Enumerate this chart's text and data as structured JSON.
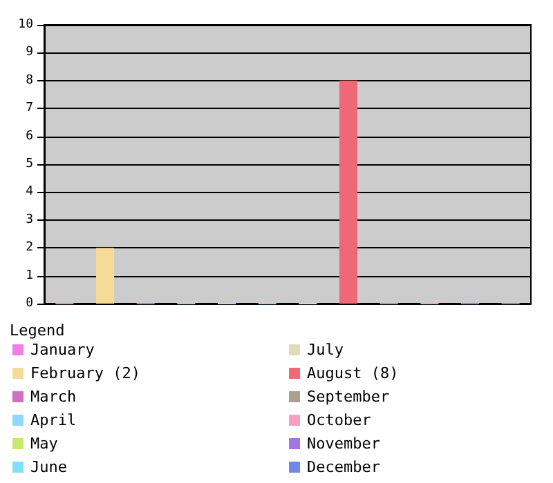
{
  "chart_data": {
    "type": "bar",
    "legend_title": "Legend",
    "categories": [
      null,
      null,
      null,
      null,
      null,
      null,
      null,
      null,
      null,
      null,
      null,
      null
    ],
    "series": [
      {
        "name": "January",
        "color": "#f080e8",
        "values": [
          0,
          null,
          null,
          null,
          null,
          null,
          null,
          null,
          null,
          null,
          null,
          null
        ]
      },
      {
        "name": "February (2)",
        "color": "#f4dc98",
        "values": [
          null,
          2,
          null,
          null,
          null,
          null,
          null,
          null,
          null,
          null,
          null,
          null
        ]
      },
      {
        "name": "March",
        "color": "#d070c0",
        "values": [
          null,
          null,
          0,
          null,
          null,
          null,
          null,
          null,
          null,
          null,
          null,
          null
        ]
      },
      {
        "name": "April",
        "color": "#90d8f8",
        "values": [
          null,
          null,
          null,
          0,
          null,
          null,
          null,
          null,
          null,
          null,
          null,
          null
        ]
      },
      {
        "name": "May",
        "color": "#c8e870",
        "values": [
          null,
          null,
          null,
          null,
          0,
          null,
          null,
          null,
          null,
          null,
          null,
          null
        ]
      },
      {
        "name": "June",
        "color": "#80e0f8",
        "values": [
          null,
          null,
          null,
          null,
          null,
          0,
          null,
          null,
          null,
          null,
          null,
          null
        ]
      },
      {
        "name": "July",
        "color": "#e0dcb8",
        "values": [
          null,
          null,
          null,
          null,
          null,
          null,
          0,
          null,
          null,
          null,
          null,
          null
        ]
      },
      {
        "name": "August (8)",
        "color": "#f06878",
        "values": [
          null,
          null,
          null,
          null,
          null,
          null,
          null,
          8,
          null,
          null,
          null,
          null
        ]
      },
      {
        "name": "September",
        "color": "#a8a090",
        "values": [
          null,
          null,
          null,
          null,
          null,
          null,
          null,
          null,
          0,
          null,
          null,
          null
        ]
      },
      {
        "name": "October",
        "color": "#f8a0c0",
        "values": [
          null,
          null,
          null,
          null,
          null,
          null,
          null,
          null,
          null,
          0,
          null,
          null
        ]
      },
      {
        "name": "November",
        "color": "#a078e0",
        "values": [
          null,
          null,
          null,
          null,
          null,
          null,
          null,
          null,
          null,
          null,
          0,
          null
        ]
      },
      {
        "name": "December",
        "color": "#7088e8",
        "values": [
          null,
          null,
          null,
          null,
          null,
          null,
          null,
          null,
          null,
          null,
          null,
          0
        ]
      }
    ],
    "ylim": [
      0,
      10
    ],
    "yticks": [
      0,
      1,
      2,
      3,
      4,
      5,
      6,
      7,
      8,
      9,
      10
    ],
    "grid": "y",
    "legend": "bottom"
  }
}
